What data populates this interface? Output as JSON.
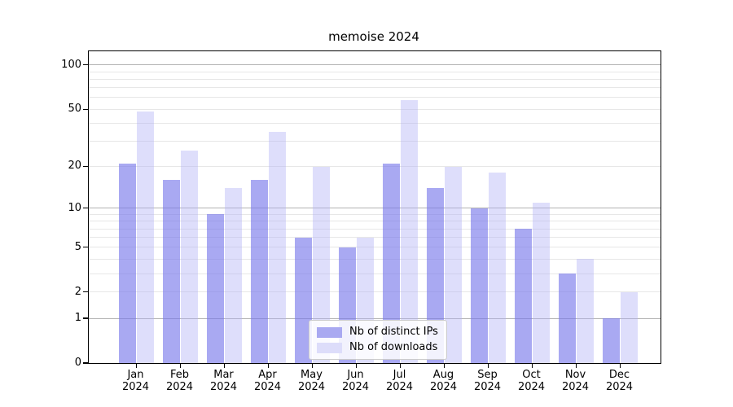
{
  "title": "memoise 2024",
  "chart_data": {
    "type": "bar",
    "title": "memoise 2024",
    "year": "2024",
    "categories": [
      "Jan",
      "Feb",
      "Mar",
      "Apr",
      "May",
      "Jun",
      "Jul",
      "Aug",
      "Sep",
      "Oct",
      "Nov",
      "Dec"
    ],
    "series": [
      {
        "name": "Nb of distinct IPs",
        "color": "#a9a9f1",
        "fill": "rgba(119,119,234,0.63)",
        "values": [
          21,
          16,
          9,
          16,
          6,
          5,
          21,
          14,
          10,
          7,
          3,
          1
        ]
      },
      {
        "name": "Nb of downloads",
        "color": "#ddddfa",
        "fill": "rgba(176,176,245,0.42)",
        "values": [
          48,
          26,
          14,
          35,
          20,
          6,
          58,
          20,
          18,
          11,
          4,
          2
        ]
      }
    ],
    "yscale": "log1p",
    "ylim": [
      0,
      124
    ],
    "yticks": [
      0,
      1,
      2,
      5,
      10,
      20,
      50,
      100
    ],
    "grid_major": [
      1,
      10,
      100
    ],
    "grid_minor": [
      2,
      3,
      4,
      5,
      6,
      7,
      8,
      9,
      20,
      30,
      40,
      50,
      60,
      70,
      80,
      90
    ],
    "grid": true,
    "legend_position": "lower center",
    "colors": {
      "grid_major": "#b2b2b2",
      "grid_minor": "#e7e7e7",
      "axis": "#000000"
    }
  }
}
